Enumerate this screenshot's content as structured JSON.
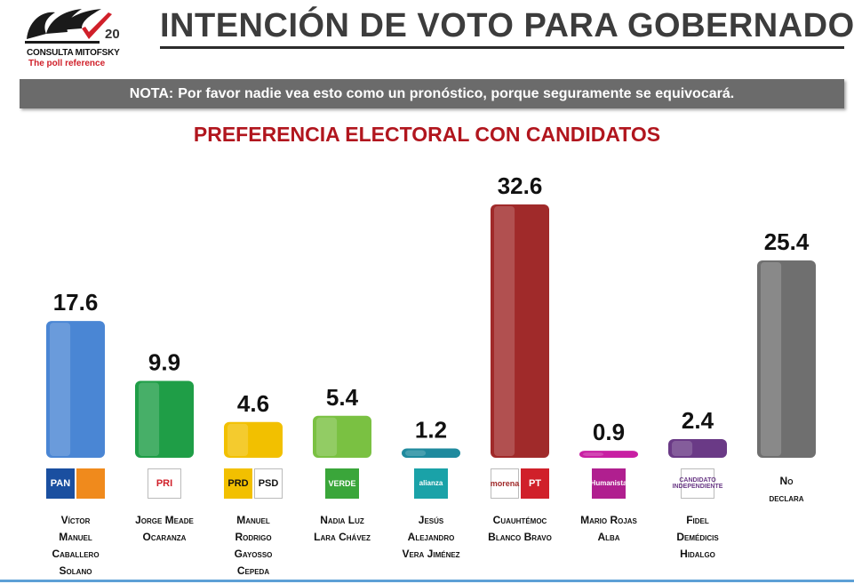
{
  "header": {
    "title": "INTENCIÓN DE VOTO PARA GOBERNADOR",
    "logo": {
      "name": "CONSULTA MITOFSKY",
      "tagline": "The poll reference",
      "anniversary": "20"
    }
  },
  "note": {
    "prefix": "NOTA:",
    "text": "Por favor nadie vea esto como un pronóstico, porque seguramente se equivocará."
  },
  "chart_data": {
    "type": "bar",
    "title": "PREFERENCIA ELECTORAL CON CANDIDATOS",
    "xlabel": "",
    "ylabel": "",
    "ylim": [
      0,
      40
    ],
    "grid": false,
    "legend": "none",
    "categories": [
      "Víctor Manuel Caballero Solano",
      "Jorge Meade Ocaranza",
      "Manuel Rodrigo Gayosso Cepeda",
      "Nadia Luz Lara Chávez",
      "Jesús Alejandro Vera Jiménez",
      "Cuauhtémoc Blanco Bravo",
      "Mario Rojas Alba",
      "Fidel Demédicis Hidalgo",
      "No declara"
    ],
    "values": [
      17.6,
      9.9,
      4.6,
      5.4,
      1.2,
      32.6,
      0.9,
      2.4,
      25.4
    ],
    "value_labels": [
      "17.6",
      "9.9",
      "4.6",
      "5.4",
      "1.2",
      "32.6",
      "0.9",
      "2.4",
      "25.4"
    ],
    "colors": [
      "#4a86d4",
      "#1f9e47",
      "#f2c000",
      "#7ac142",
      "#1f8a9e",
      "#a02a2a",
      "#c81fa3",
      "#6a3a86",
      "#6f6f6f"
    ]
  },
  "candidates": [
    {
      "name_lines": [
        "Víctor",
        "Manuel",
        "Caballero",
        "Solano"
      ],
      "logos": [
        {
          "icon": "pan-logo",
          "text": "PAN",
          "bg": "#1a4fa0",
          "fg": "#ffffff"
        },
        {
          "icon": "movimiento-ciudadano-logo",
          "text": "",
          "bg": "#f08a1c",
          "fg": "#ffffff"
        }
      ]
    },
    {
      "name_lines": [
        "Jorge Meade",
        "Ocaranza"
      ],
      "logos": [
        {
          "icon": "pri-logo",
          "text": "PRI",
          "bg": "#ffffff",
          "fg": "#d0202a"
        }
      ]
    },
    {
      "name_lines": [
        "Manuel",
        "Rodrigo",
        "Gayosso",
        "Cepeda"
      ],
      "logos": [
        {
          "icon": "prd-logo",
          "text": "PRD",
          "bg": "#f2c000",
          "fg": "#111111"
        },
        {
          "icon": "psd-logo",
          "text": "PSD",
          "bg": "#ffffff",
          "fg": "#111111"
        }
      ]
    },
    {
      "name_lines": [
        "Nadia Luz",
        "Lara Chávez"
      ],
      "logos": [
        {
          "icon": "verde-logo",
          "text": "VERDE",
          "bg": "#3aa63a",
          "fg": "#ffffff"
        }
      ]
    },
    {
      "name_lines": [
        "Jesús",
        "Alejandro",
        "Vera Jiménez"
      ],
      "logos": [
        {
          "icon": "nueva-alianza-logo",
          "text": "alianza",
          "bg": "#1aa2a8",
          "fg": "#ffffff"
        }
      ]
    },
    {
      "name_lines": [
        "Cuauhtémoc",
        "Blanco Bravo"
      ],
      "logos": [
        {
          "icon": "morena-logo",
          "text": "morena",
          "bg": "#ffffff",
          "fg": "#a02a2a"
        },
        {
          "icon": "pt-logo",
          "text": "PT",
          "bg": "#d0202a",
          "fg": "#ffffff"
        }
      ]
    },
    {
      "name_lines": [
        "Mario Rojas",
        "Alba"
      ],
      "logos": [
        {
          "icon": "humanista-logo",
          "text": "Humanista",
          "bg": "#b01f8f",
          "fg": "#ffffff"
        }
      ]
    },
    {
      "name_lines": [
        "Fidel",
        "Demédicis",
        "Hidalgo"
      ],
      "logos": [
        {
          "icon": "candidato-independiente-logo",
          "text": "CANDIDATO INDEPENDIENTE",
          "bg": "#ffffff",
          "fg": "#6a3a86"
        }
      ]
    },
    {
      "name_lines": [
        "No",
        "declara"
      ],
      "logos": []
    }
  ]
}
